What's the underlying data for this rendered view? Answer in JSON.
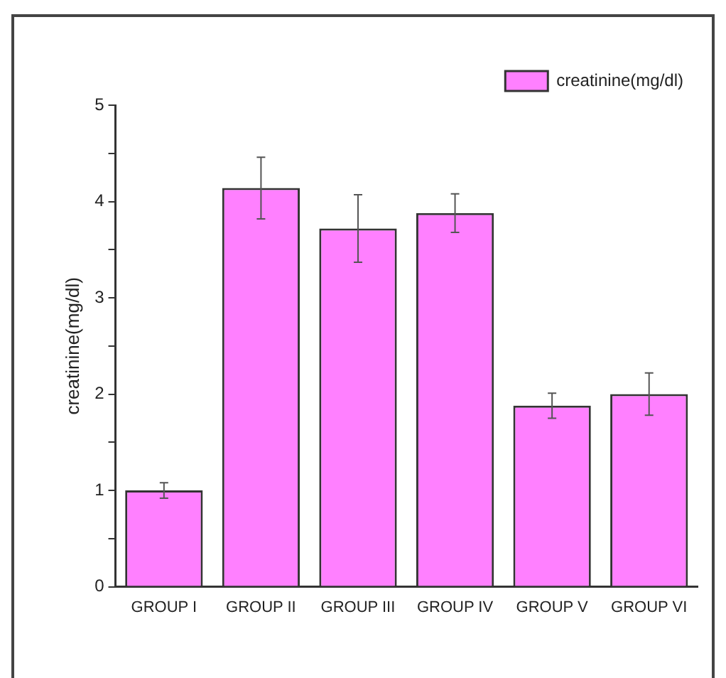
{
  "chart_data": {
    "type": "bar",
    "ylabel": "creatinine(mg/dl)",
    "categories": [
      "GROUP I",
      "GROUP II",
      "GROUP III",
      "GROUP IV",
      "GROUP V",
      "GROUP VI"
    ],
    "series": [
      {
        "name": "creatinine(mg/dl)",
        "color": "#ff80ff",
        "values": [
          1.0,
          4.14,
          3.72,
          3.88,
          1.88,
          2.0
        ],
        "errors": [
          0.08,
          0.32,
          0.35,
          0.2,
          0.13,
          0.22
        ]
      }
    ],
    "ylim": [
      0,
      5
    ],
    "yticks": [
      0,
      {
        "value": 0.5,
        "label": null
      },
      1,
      {
        "value": 1.5,
        "label": null
      },
      2,
      {
        "value": 2.5,
        "label": null
      },
      3,
      {
        "value": 3.5,
        "label": null
      },
      4,
      {
        "value": 4.5,
        "label": null
      },
      5
    ],
    "grid": false,
    "legend": "top right"
  }
}
